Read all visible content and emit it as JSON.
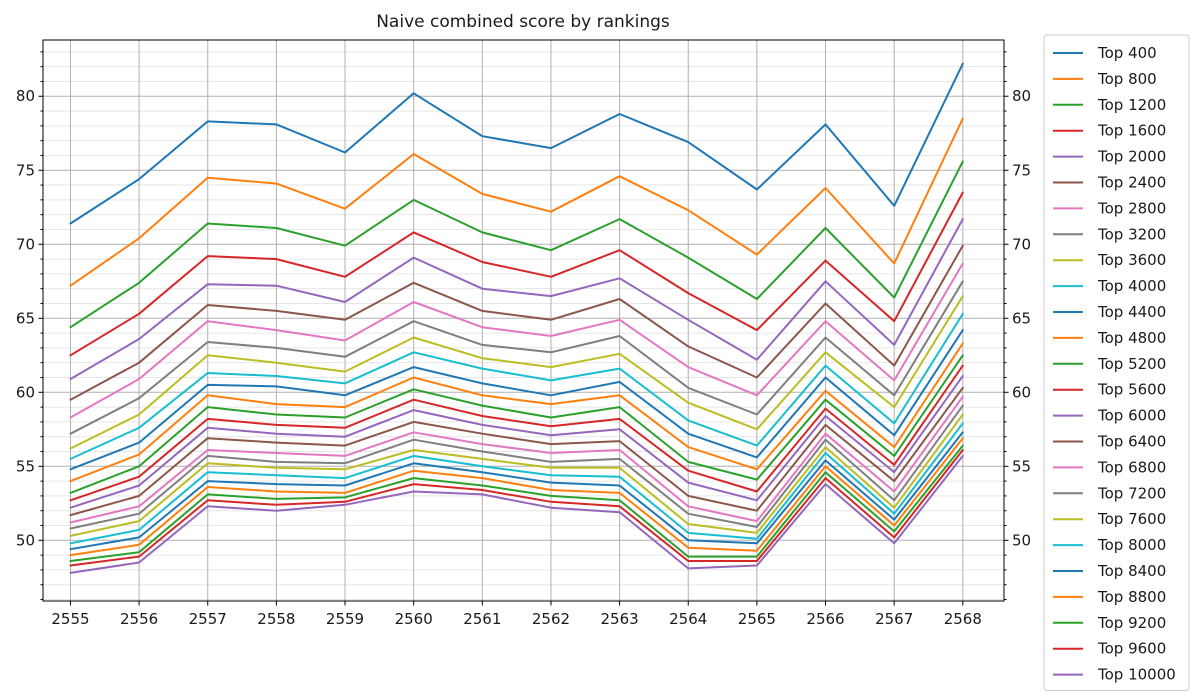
{
  "chart_data": {
    "type": "line",
    "title": "Naive combined score by rankings",
    "xlabel": "",
    "ylabel": "",
    "x": [
      2555,
      2556,
      2557,
      2558,
      2559,
      2560,
      2561,
      2562,
      2563,
      2564,
      2565,
      2566,
      2567,
      2568
    ],
    "xlim": [
      2554.6,
      2568.6
    ],
    "ylim": [
      45.9,
      83.8
    ],
    "yticks": [
      50,
      55,
      60,
      65,
      70,
      75,
      80
    ],
    "y_minor_step": 1,
    "grid": true,
    "right_axis_labels": true,
    "legend_position": "outside right",
    "series": [
      {
        "name": "Top 400",
        "color": "#1f77b4",
        "values": [
          71.4,
          74.4,
          78.3,
          78.1,
          76.2,
          80.2,
          77.3,
          76.5,
          78.8,
          76.9,
          73.7,
          78.1,
          72.6,
          82.2
        ]
      },
      {
        "name": "Top 800",
        "color": "#ff7f0e",
        "values": [
          67.2,
          70.4,
          74.5,
          74.1,
          72.4,
          76.1,
          73.4,
          72.2,
          74.6,
          72.3,
          69.3,
          73.8,
          68.7,
          78.5
        ]
      },
      {
        "name": "Top 1200",
        "color": "#2ca02c",
        "values": [
          64.4,
          67.4,
          71.4,
          71.1,
          69.9,
          73.0,
          70.8,
          69.6,
          71.7,
          69.1,
          66.3,
          71.1,
          66.4,
          75.6
        ]
      },
      {
        "name": "Top 1600",
        "color": "#d62728",
        "values": [
          62.5,
          65.3,
          69.2,
          69.0,
          67.8,
          70.8,
          68.8,
          67.8,
          69.6,
          66.7,
          64.2,
          68.9,
          64.8,
          73.5
        ]
      },
      {
        "name": "Top 2000",
        "color": "#9467bd",
        "values": [
          60.9,
          63.6,
          67.3,
          67.2,
          66.1,
          69.1,
          67.0,
          66.5,
          67.7,
          64.9,
          62.2,
          67.5,
          63.2,
          71.7
        ]
      },
      {
        "name": "Top 2400",
        "color": "#8c564b",
        "values": [
          59.5,
          62.0,
          65.9,
          65.5,
          64.9,
          67.4,
          65.5,
          64.9,
          66.3,
          63.1,
          61.0,
          66.0,
          61.8,
          69.9
        ]
      },
      {
        "name": "Top 2800",
        "color": "#e377c2",
        "values": [
          58.3,
          60.9,
          64.8,
          64.2,
          63.5,
          66.1,
          64.4,
          63.8,
          64.9,
          61.7,
          59.8,
          64.8,
          60.8,
          68.7
        ]
      },
      {
        "name": "Top 3200",
        "color": "#7f7f7f",
        "values": [
          57.2,
          59.6,
          63.4,
          63.0,
          62.4,
          64.8,
          63.2,
          62.7,
          63.8,
          60.3,
          58.5,
          63.7,
          59.8,
          67.5
        ]
      },
      {
        "name": "Top 3600",
        "color": "#bcbd22",
        "values": [
          56.2,
          58.5,
          62.5,
          62.0,
          61.4,
          63.7,
          62.3,
          61.7,
          62.6,
          59.3,
          57.5,
          62.7,
          59.0,
          66.5
        ]
      },
      {
        "name": "Top 4000",
        "color": "#17becf",
        "values": [
          55.5,
          57.6,
          61.3,
          61.1,
          60.6,
          62.7,
          61.6,
          60.8,
          61.6,
          58.1,
          56.4,
          61.8,
          57.9,
          65.3
        ]
      },
      {
        "name": "Top 4400",
        "color": "#1f77b4",
        "values": [
          54.8,
          56.6,
          60.5,
          60.4,
          59.8,
          61.7,
          60.6,
          59.8,
          60.7,
          57.2,
          55.6,
          61.0,
          57.1,
          64.2
        ]
      },
      {
        "name": "Top 4800",
        "color": "#ff7f0e",
        "values": [
          54.0,
          55.8,
          59.8,
          59.2,
          59.0,
          61.0,
          59.8,
          59.2,
          59.8,
          56.3,
          54.8,
          60.1,
          56.3,
          63.3
        ]
      },
      {
        "name": "Top 5200",
        "color": "#2ca02c",
        "values": [
          53.2,
          55.0,
          59.0,
          58.5,
          58.3,
          60.2,
          59.1,
          58.3,
          59.0,
          55.3,
          54.1,
          59.5,
          55.7,
          62.5
        ]
      },
      {
        "name": "Top 5600",
        "color": "#d62728",
        "values": [
          52.7,
          54.3,
          58.2,
          57.8,
          57.6,
          59.5,
          58.4,
          57.7,
          58.2,
          54.7,
          53.3,
          58.9,
          55.1,
          61.8
        ]
      },
      {
        "name": "Top 6000",
        "color": "#9467bd",
        "values": [
          52.2,
          53.7,
          57.6,
          57.2,
          57.0,
          58.8,
          57.8,
          57.1,
          57.5,
          53.9,
          52.7,
          58.4,
          54.6,
          61.1
        ]
      },
      {
        "name": "Top 6400",
        "color": "#8c564b",
        "values": [
          51.7,
          53.0,
          56.9,
          56.6,
          56.4,
          58.0,
          57.2,
          56.5,
          56.7,
          53.0,
          52.0,
          57.8,
          54.0,
          60.3
        ]
      },
      {
        "name": "Top 6800",
        "color": "#e377c2",
        "values": [
          51.2,
          52.3,
          56.1,
          55.9,
          55.7,
          57.3,
          56.5,
          55.9,
          56.1,
          52.3,
          51.3,
          57.2,
          53.3,
          59.7
        ]
      },
      {
        "name": "Top 7200",
        "color": "#7f7f7f",
        "values": [
          50.8,
          51.8,
          55.7,
          55.3,
          55.2,
          56.8,
          56.0,
          55.3,
          55.5,
          51.8,
          50.9,
          56.8,
          52.7,
          59.1
        ]
      },
      {
        "name": "Top 7600",
        "color": "#bcbd22",
        "values": [
          50.3,
          51.3,
          55.2,
          54.9,
          54.8,
          56.1,
          55.5,
          54.9,
          54.9,
          51.1,
          50.5,
          56.3,
          52.2,
          58.5
        ]
      },
      {
        "name": "Top 8000",
        "color": "#17becf",
        "values": [
          49.8,
          50.7,
          54.6,
          54.4,
          54.2,
          55.7,
          55.0,
          54.4,
          54.3,
          50.5,
          50.1,
          55.9,
          51.8,
          57.9
        ]
      },
      {
        "name": "Top 8400",
        "color": "#1f77b4",
        "values": [
          49.4,
          50.2,
          54.0,
          53.8,
          53.7,
          55.2,
          54.6,
          53.9,
          53.7,
          50.0,
          49.8,
          55.4,
          51.4,
          57.3
        ]
      },
      {
        "name": "Top 8800",
        "color": "#ff7f0e",
        "values": [
          49.0,
          49.7,
          53.6,
          53.3,
          53.2,
          54.7,
          54.2,
          53.4,
          53.2,
          49.5,
          49.3,
          55.0,
          51.0,
          56.9
        ]
      },
      {
        "name": "Top 9200",
        "color": "#2ca02c",
        "values": [
          48.6,
          49.2,
          53.1,
          52.8,
          52.9,
          54.2,
          53.7,
          53.0,
          52.7,
          48.9,
          48.9,
          54.6,
          50.6,
          56.4
        ]
      },
      {
        "name": "Top 9600",
        "color": "#d62728",
        "values": [
          48.3,
          48.9,
          52.7,
          52.4,
          52.6,
          53.8,
          53.4,
          52.6,
          52.3,
          48.6,
          48.6,
          54.2,
          50.2,
          56.1
        ]
      },
      {
        "name": "Top 10000",
        "color": "#9467bd",
        "values": [
          47.8,
          48.5,
          52.3,
          52.0,
          52.4,
          53.3,
          53.1,
          52.2,
          51.9,
          48.1,
          48.3,
          53.8,
          49.8,
          55.7
        ]
      }
    ]
  }
}
